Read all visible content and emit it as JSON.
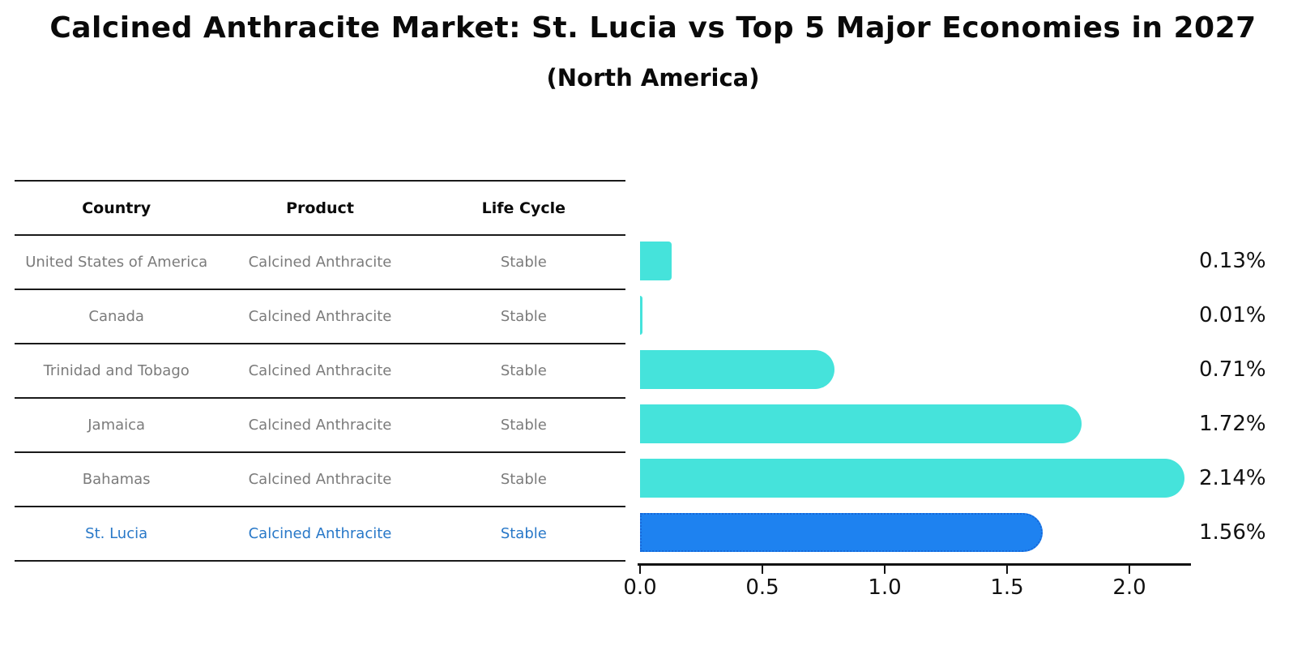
{
  "title": "Calcined Anthracite Market: St. Lucia vs Top 5 Major Economies in 2027",
  "subtitle": "(North America)",
  "table": {
    "headers": [
      "Country",
      "Product",
      "Life Cycle"
    ],
    "rows": [
      {
        "country": "United States of America",
        "product": "Calcined Anthracite",
        "life_cycle": "Stable",
        "highlight": false
      },
      {
        "country": "Canada",
        "product": "Calcined Anthracite",
        "life_cycle": "Stable",
        "highlight": false
      },
      {
        "country": "Trinidad and Tobago",
        "product": "Calcined Anthracite",
        "life_cycle": "Stable",
        "highlight": false
      },
      {
        "country": "Jamaica",
        "product": "Calcined Anthracite",
        "life_cycle": "Stable",
        "highlight": false
      },
      {
        "country": "Bahamas",
        "product": "Calcined Anthracite",
        "life_cycle": "Stable",
        "highlight": false
      },
      {
        "country": "St. Lucia",
        "product": "Calcined Anthracite",
        "life_cycle": "Stable",
        "highlight": true
      }
    ]
  },
  "chart_data": {
    "type": "bar",
    "orientation": "horizontal",
    "title": "Calcined Anthracite Market: St. Lucia vs Top 5 Major Economies in 2027",
    "subtitle": "(North America)",
    "categories": [
      "United States of America",
      "Canada",
      "Trinidad and Tobago",
      "Jamaica",
      "Bahamas",
      "St. Lucia"
    ],
    "values": [
      0.13,
      0.01,
      0.71,
      1.72,
      2.14,
      1.56
    ],
    "value_labels": [
      "0.13%",
      "0.01%",
      "0.71%",
      "1.72%",
      "2.14%",
      "1.56%"
    ],
    "highlight_index": 5,
    "xlabel": "",
    "ylabel": "",
    "xlim": [
      0.0,
      2.25
    ],
    "xticks": [
      0.0,
      0.5,
      1.0,
      1.5,
      2.0
    ],
    "xtick_labels": [
      "0.0",
      "0.5",
      "1.0",
      "1.5",
      "2.0"
    ],
    "grid": false,
    "legend": false,
    "bar_color": "#45E3DB",
    "highlight_bar_color": "#1E82F0",
    "highlight_border_color": "#1668D9",
    "highlight_text_color": "#2878C8",
    "axis_color": "#111111"
  }
}
